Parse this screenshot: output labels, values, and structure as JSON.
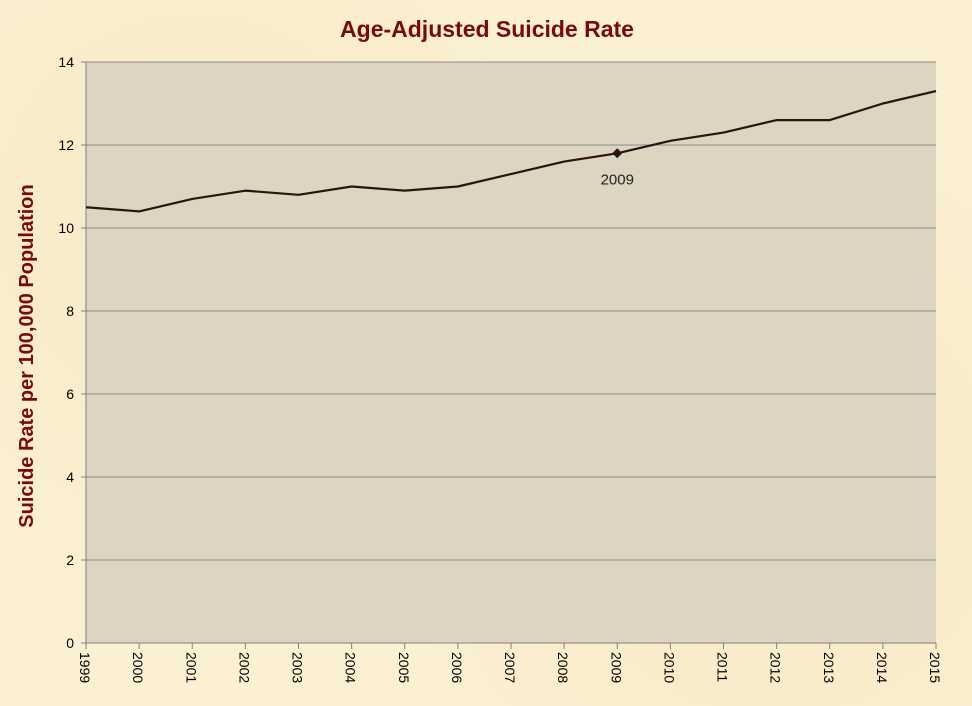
{
  "chart_data": {
    "type": "line",
    "title": "Age-Adjusted Suicide Rate",
    "ylabel": "Suicide Rate per 100,000 Population",
    "xlabel": "",
    "x": [
      "1999",
      "2000",
      "2001",
      "2002",
      "2003",
      "2004",
      "2005",
      "2006",
      "2007",
      "2008",
      "2009",
      "2010",
      "2011",
      "2012",
      "2013",
      "2014",
      "2015"
    ],
    "series": [
      {
        "values": [
          10.5,
          10.4,
          10.7,
          10.9,
          10.8,
          11.0,
          10.9,
          11.0,
          11.3,
          11.6,
          11.8,
          12.1,
          12.3,
          12.6,
          12.6,
          13.0,
          13.3
        ]
      }
    ],
    "ylim": [
      0,
      14
    ],
    "yticks": [
      0,
      2,
      4,
      6,
      8,
      10,
      12,
      14
    ],
    "grid": true,
    "legend": "none",
    "annotation": {
      "x": "2009",
      "label": "2009"
    },
    "colors": {
      "line": "#2b1410",
      "plot_background": "#ddd5c1",
      "title": "#7a0a0a",
      "gridline": "#8a8a8a"
    }
  }
}
